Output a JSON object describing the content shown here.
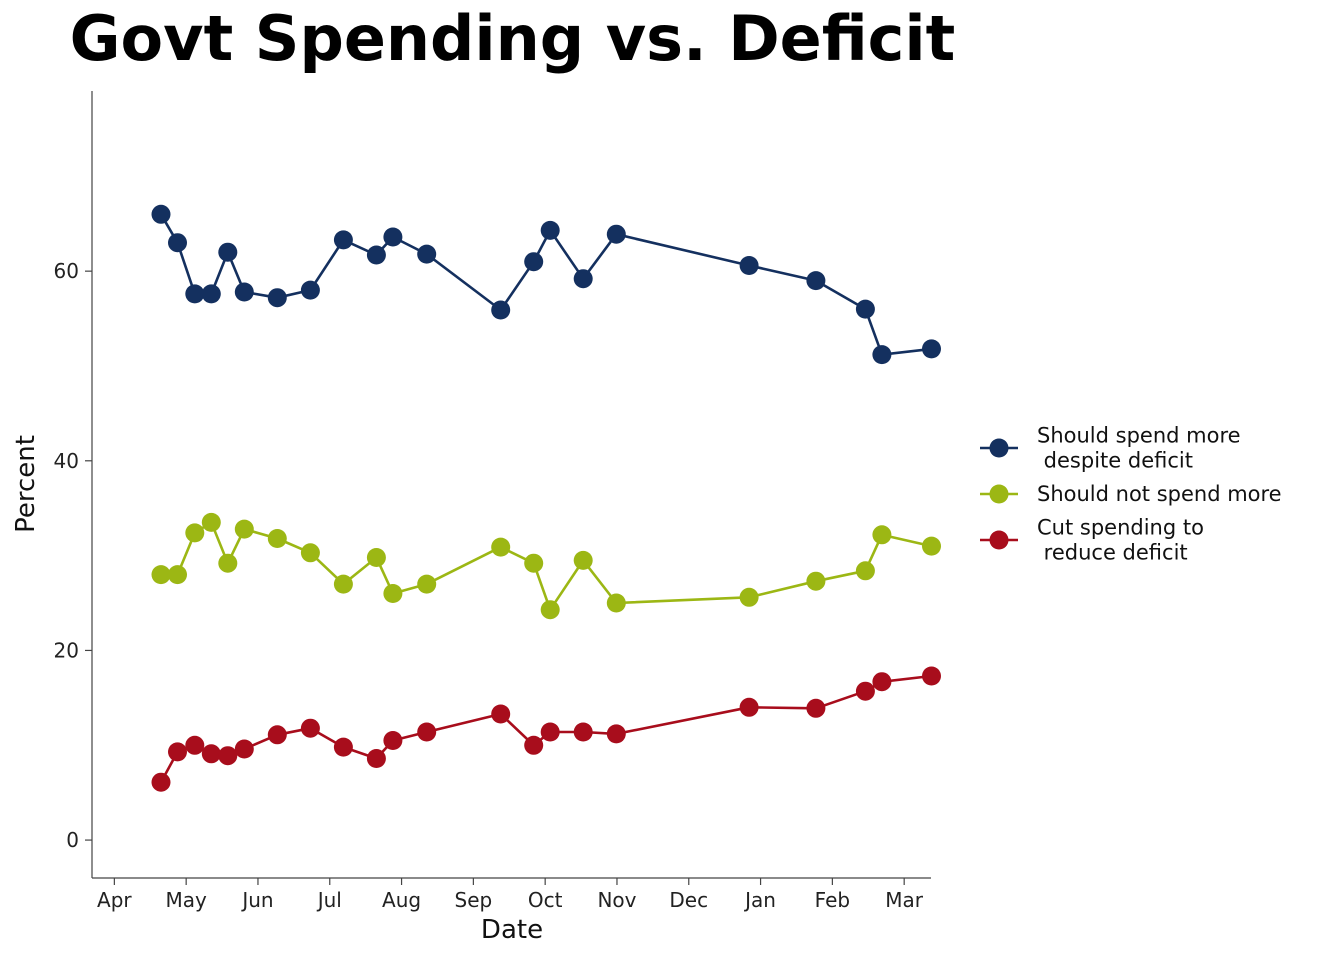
{
  "chart_data": {
    "type": "line",
    "title": "Govt Spending vs. Deficit",
    "xlabel": "Date",
    "ylabel": "Percent",
    "ylim": [
      -4,
      79
    ],
    "yticks": [
      0,
      20,
      40,
      60
    ],
    "xlim": [
      -0.2,
      11.2
    ],
    "x_tick_labels": [
      "Apr",
      "May",
      "Jun",
      "Jul",
      "Aug",
      "Sep",
      "Oct",
      "Nov",
      "Dec",
      "Jan",
      "Feb",
      "Mar"
    ],
    "x": [
      0.65,
      0.88,
      1.12,
      1.35,
      1.58,
      1.81,
      2.27,
      2.73,
      3.19,
      3.65,
      3.88,
      4.35,
      5.38,
      5.84,
      6.07,
      6.53,
      6.99,
      8.84,
      9.77,
      10.46,
      10.69,
      11.38
    ],
    "series": [
      {
        "name": "Should spend more\n despite deficit",
        "color": "#14305f",
        "values": [
          66,
          63,
          57.6,
          57.6,
          62,
          57.8,
          57.2,
          58,
          63.3,
          61.7,
          63.6,
          61.8,
          55.9,
          61,
          64.3,
          59.2,
          63.9,
          60.6,
          59,
          56,
          51.2,
          51.8
        ]
      },
      {
        "name": "Should not spend more",
        "color": "#9cb714",
        "values": [
          28,
          28,
          32.4,
          33.5,
          29.2,
          32.8,
          31.8,
          30.3,
          27,
          29.8,
          26,
          27,
          30.9,
          29.2,
          24.3,
          29.5,
          25,
          25.6,
          27.3,
          28.4,
          32.2,
          31
        ]
      },
      {
        "name": "Cut spending to\n reduce deficit",
        "color": "#a80d1c",
        "values": [
          6.1,
          9.3,
          10,
          9.1,
          8.9,
          9.6,
          11.1,
          11.8,
          9.8,
          8.6,
          10.5,
          11.4,
          13.3,
          10,
          11.4,
          11.4,
          11.2,
          14,
          13.9,
          15.7,
          16.7,
          17.3
        ]
      }
    ],
    "legend_position": "right"
  }
}
